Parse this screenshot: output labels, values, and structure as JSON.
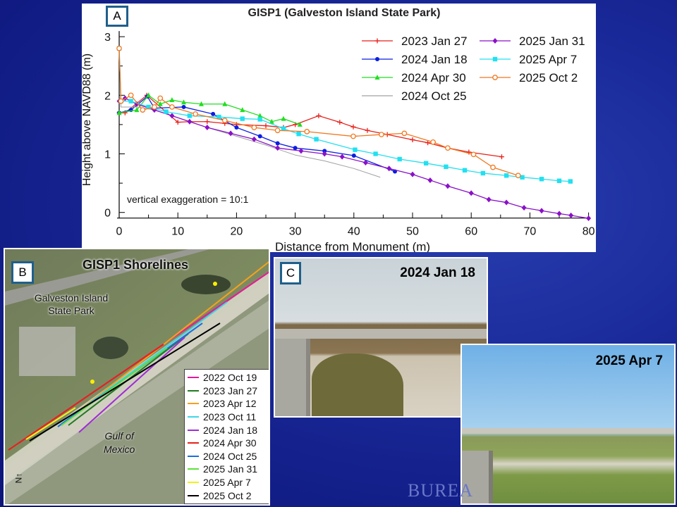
{
  "slide": {
    "footer_text": "BUREA"
  },
  "panel_a": {
    "label": "A"
  },
  "panel_b": {
    "label": "B",
    "title": "GISP1 Shorelines",
    "place_label_1": "Galveston Island",
    "place_label_2": "State Park",
    "water_label_1": "Gulf of",
    "water_label_2": "Mexico",
    "north_arrow": "N",
    "legend": [
      {
        "label": "2022 Oct 19",
        "color": "#e8199a"
      },
      {
        "label": "2023 Jan 27",
        "color": "#1f7a1f"
      },
      {
        "label": "2023 Apr 12",
        "color": "#f5a21a"
      },
      {
        "label": "2023 Oct 11",
        "color": "#3fd6e6"
      },
      {
        "label": "2024 Jan 18",
        "color": "#a02bd6"
      },
      {
        "label": "2024 Apr 30",
        "color": "#e8201a"
      },
      {
        "label": "2024 Oct 25",
        "color": "#1a6fe0"
      },
      {
        "label": "2025 Jan 31",
        "color": "#5fe03a"
      },
      {
        "label": "2025 Apr 7",
        "color": "#f2f21a"
      },
      {
        "label": "2025 Oct 2",
        "color": "#000000"
      }
    ]
  },
  "panel_c": {
    "label": "C",
    "photo1_date": "2024 Jan 18",
    "photo2_date": "2025 Apr 7"
  },
  "chart_data": {
    "type": "line",
    "title": "GISP1 (Galveston Island State Park)",
    "xlabel": "Distance from Monument (m)",
    "ylabel": "Height above NAVD88 (m)",
    "xlim": [
      0,
      80
    ],
    "ylim": [
      0,
      3
    ],
    "xticks": [
      0,
      10,
      20,
      30,
      40,
      50,
      60,
      70,
      80
    ],
    "yticks": [
      0,
      1,
      2,
      3
    ],
    "annotation": "vertical exaggeration = 10:1",
    "legend_placement": "top-right",
    "series": [
      {
        "name": "2023 Jan 27",
        "color": "#e8201a",
        "marker": "plus",
        "x": [
          0,
          1,
          4.7,
          10,
          12,
          15,
          18,
          20,
          25,
          28,
          30,
          34,
          37.6,
          39.9,
          42.3,
          45.7,
          50,
          52.6,
          56,
          59.6,
          65.2
        ],
        "y": [
          1.7,
          1.7,
          2.0,
          1.54,
          1.55,
          1.55,
          1.52,
          1.5,
          1.48,
          1.45,
          1.5,
          1.65,
          1.54,
          1.46,
          1.4,
          1.33,
          1.24,
          1.19,
          1.1,
          1.03,
          0.95
        ]
      },
      {
        "name": "2024 Jan 18",
        "color": "#0a1ee0",
        "marker": "circle",
        "x": [
          0,
          2,
          4.8,
          6,
          11,
          16,
          20,
          24,
          27,
          30,
          35,
          40,
          47
        ],
        "y": [
          1.7,
          1.75,
          1.98,
          1.78,
          1.8,
          1.68,
          1.45,
          1.3,
          1.18,
          1.1,
          1.05,
          0.97,
          0.7
        ]
      },
      {
        "name": "2024 Apr 30",
        "color": "#22dd22",
        "marker": "triangle",
        "x": [
          0,
          3,
          5,
          7,
          9,
          11,
          14,
          18,
          21,
          24,
          26,
          28,
          30.8
        ],
        "y": [
          1.7,
          1.75,
          2.0,
          1.85,
          1.92,
          1.88,
          1.85,
          1.85,
          1.75,
          1.65,
          1.55,
          1.6,
          1.5
        ]
      },
      {
        "name": "2024 Oct 25",
        "color": "#a0a0a0",
        "marker": "none",
        "x": [
          0,
          0.3,
          3,
          6,
          10,
          15,
          20,
          25,
          30,
          35,
          40,
          44.5
        ],
        "y": [
          2.8,
          1.8,
          1.8,
          1.75,
          1.62,
          1.45,
          1.3,
          1.15,
          0.98,
          0.88,
          0.75,
          0.6
        ]
      },
      {
        "name": "2025 Jan 31",
        "color": "#8a10c8",
        "marker": "diamond",
        "x": [
          0,
          1,
          3,
          6,
          9,
          12,
          15,
          19,
          23,
          27,
          31,
          35,
          38,
          42,
          46,
          50,
          53,
          56,
          60,
          63,
          66,
          69,
          72,
          75,
          77,
          80
        ],
        "y": [
          1.9,
          1.95,
          1.85,
          1.75,
          1.65,
          1.55,
          1.45,
          1.35,
          1.25,
          1.1,
          1.05,
          1.0,
          0.95,
          0.85,
          0.75,
          0.65,
          0.55,
          0.45,
          0.33,
          0.22,
          0.17,
          0.08,
          0.03,
          -0.02,
          -0.05,
          -0.1
        ]
      },
      {
        "name": "2025 Apr 7",
        "color": "#22e0f0",
        "marker": "square",
        "x": [
          0,
          0.3,
          2,
          5,
          8,
          12,
          17,
          21,
          24,
          28,
          30.6,
          33.6,
          40.2,
          43.7,
          47.8,
          52.3,
          55.7,
          58.9,
          62,
          66,
          68.7,
          72,
          75,
          76.9
        ],
        "y": [
          2.8,
          1.9,
          1.9,
          1.8,
          1.72,
          1.65,
          1.63,
          1.6,
          1.59,
          1.43,
          1.34,
          1.25,
          1.07,
          1.0,
          0.91,
          0.84,
          0.78,
          0.72,
          0.67,
          0.63,
          0.6,
          0.57,
          0.54,
          0.53
        ]
      },
      {
        "name": "2025 Oct 2",
        "color": "#f07820",
        "marker": "open-circle",
        "x": [
          0,
          0.3,
          2,
          4,
          6,
          7,
          9,
          13,
          18,
          23,
          27,
          32,
          39.9,
          44.7,
          48.6,
          53.5,
          56,
          60.4,
          63.7,
          68
        ],
        "y": [
          2.8,
          1.9,
          2.0,
          1.75,
          1.8,
          1.95,
          1.8,
          1.68,
          1.57,
          1.45,
          1.4,
          1.38,
          1.3,
          1.33,
          1.35,
          1.2,
          1.1,
          0.99,
          0.77,
          0.63
        ]
      }
    ]
  }
}
